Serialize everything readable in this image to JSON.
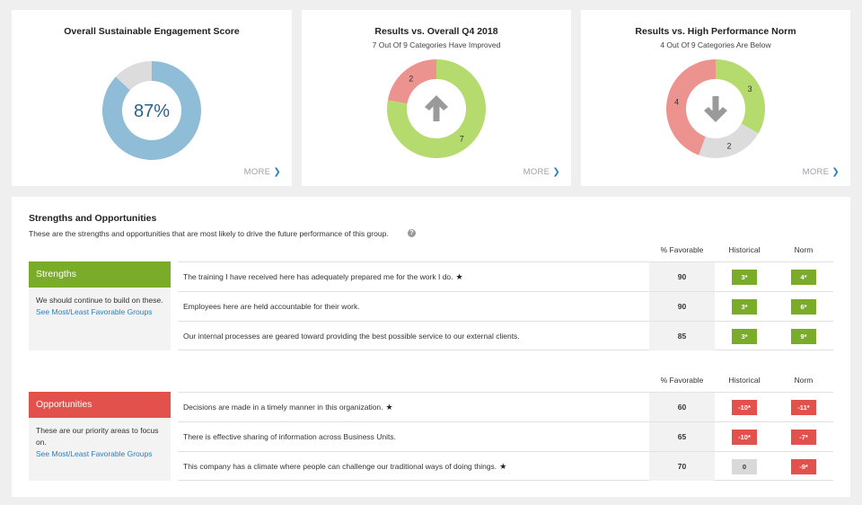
{
  "cards": [
    {
      "title": "Overall Sustainable Engagement Score",
      "subtitle": "",
      "center_label": "87%",
      "more_label": "MORE",
      "slices": [
        {
          "value": 87,
          "color": "#8fbcd6"
        },
        {
          "value": 13,
          "color": "#dcdcdc"
        }
      ]
    },
    {
      "title": "Results vs. Overall Q4 2018",
      "subtitle": "7 Out Of 9 Categories Have Improved",
      "more_label": "MORE",
      "arrow": "up-arrow-icon",
      "slices": [
        {
          "value": 7,
          "label": "7",
          "color": "#b5db6f"
        },
        {
          "value": 2,
          "label": "2",
          "color": "#ed938f"
        }
      ]
    },
    {
      "title": "Results vs. High Performance Norm",
      "subtitle": "4 Out Of 9 Categories Are Below",
      "more_label": "MORE",
      "arrow": "down-arrow-icon",
      "slices": [
        {
          "value": 3,
          "label": "3",
          "color": "#b5db6f"
        },
        {
          "value": 2,
          "label": "2",
          "color": "#dcdcdc"
        },
        {
          "value": 4,
          "label": "4",
          "color": "#ed938f"
        }
      ]
    }
  ],
  "so": {
    "title": "Strengths and Opportunities",
    "description": "These are the strengths and opportunities that are most likely to drive the future performance of this group.",
    "col_favorable": "% Favorable",
    "col_historical": "Historical",
    "col_norm": "Norm",
    "strengths": {
      "header": "Strengths",
      "color": "#7aac2a",
      "text": "We should continue to build on these.",
      "link": "See Most/Least Favorable Groups",
      "rows": [
        {
          "question": "The training I have received here has adequately prepared me for the work I do.",
          "star": "★",
          "favorable": "90",
          "historical": "3*",
          "norm": "4*"
        },
        {
          "question": "Employees here are held accountable for their work.",
          "star": "",
          "favorable": "90",
          "historical": "3*",
          "norm": "6*"
        },
        {
          "question": "Our internal processes are geared toward providing the best possible service to our external clients.",
          "star": "",
          "favorable": "85",
          "historical": "3*",
          "norm": "9*"
        }
      ]
    },
    "opportunities": {
      "header": "Opportunities",
      "color": "#e2514c",
      "text": "These are our priority areas to focus on.",
      "link": "See Most/Least Favorable Groups",
      "rows": [
        {
          "question": "Decisions are made in a timely manner in this organization.",
          "star": "★",
          "favorable": "60",
          "historical": "-10*",
          "norm": "-11*"
        },
        {
          "question": "There is effective sharing of information across Business Units.",
          "star": "",
          "favorable": "65",
          "historical": "-10*",
          "norm": "-7*"
        },
        {
          "question": "This company has a climate where people can challenge our traditional ways of doing things.",
          "star": "★",
          "favorable": "70",
          "historical": "0",
          "norm": "-9*"
        }
      ]
    }
  }
}
